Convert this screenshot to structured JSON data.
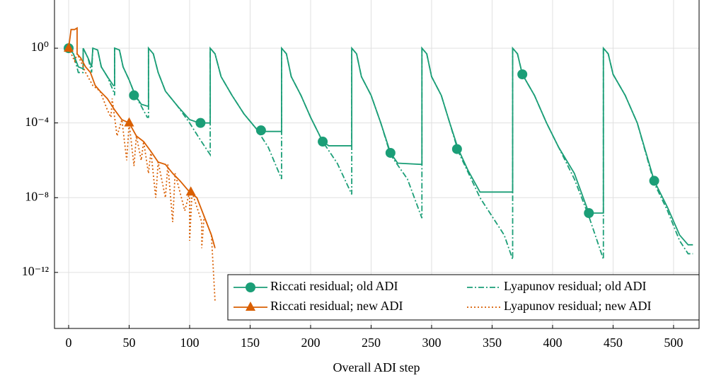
{
  "chart_data": {
    "type": "line",
    "xlabel": "Overall ADI step",
    "log_y": true,
    "grid": true,
    "legend": "lower right",
    "xlim": [
      -11.7,
      521.1
    ],
    "xticks": [
      0,
      50,
      100,
      150,
      200,
      250,
      300,
      350,
      400,
      450,
      500
    ],
    "ylim": [
      1e-15,
      380
    ],
    "yticks": [
      {
        "value": 1,
        "label": "10⁰"
      },
      {
        "value": 0.0001,
        "label": "10⁻⁴"
      },
      {
        "value": 1e-08,
        "label": "10⁻⁸"
      },
      {
        "value": 1e-12,
        "label": "10⁻¹²"
      }
    ],
    "series": [
      {
        "name": "Riccati residual; old ADI",
        "color": "#1b9e77",
        "dash": "solid",
        "marker": "circle",
        "x": [
          0,
          4,
          8,
          12,
          12,
          16,
          19,
          20,
          24,
          27,
          32,
          37,
          38,
          38,
          42,
          45,
          50,
          55,
          60,
          65,
          66,
          66,
          70,
          74,
          80,
          90,
          100,
          108,
          117,
          117,
          121,
          126,
          135,
          145,
          155,
          160,
          176,
          176,
          180,
          184,
          192,
          200,
          210,
          215,
          234,
          234,
          238,
          242,
          250,
          258,
          266,
          272,
          292,
          292,
          296,
          300,
          308,
          315,
          322,
          330,
          340,
          367,
          367,
          371,
          375,
          385,
          395,
          405,
          418,
          430,
          442,
          442,
          446,
          450,
          460,
          470,
          484,
          495,
          505,
          512,
          516
        ],
        "values": [
          1,
          0.5,
          0.1,
          0.08,
          1,
          0.3,
          0.1,
          1,
          0.8,
          0.1,
          0.03,
          0.01,
          0.01,
          1,
          0.8,
          0.1,
          0.02,
          0.003,
          0.001,
          0.0008,
          0.0008,
          1,
          0.5,
          0.05,
          0.005,
          0.0008,
          0.00015,
          0.0001,
          0.0001,
          1,
          0.5,
          0.03,
          0.003,
          0.0003,
          5e-05,
          3.5e-05,
          3.5e-05,
          1,
          0.5,
          0.03,
          0.003,
          0.0002,
          1e-05,
          6e-06,
          6e-06,
          1,
          0.5,
          0.03,
          0.003,
          0.0001,
          2.5e-06,
          7e-07,
          6e-07,
          1,
          0.5,
          0.03,
          0.003,
          0.0001,
          4e-06,
          3e-07,
          2e-08,
          2e-08,
          1,
          0.5,
          0.04,
          0.003,
          0.0001,
          5e-06,
          2e-07,
          1.5e-09,
          1.5e-09,
          1,
          0.5,
          0.04,
          0.003,
          0.0001,
          8e-08,
          3e-09,
          1e-10,
          3e-11,
          3e-11
        ],
        "marker_x": [
          0,
          54,
          109,
          159,
          210,
          266,
          321,
          375,
          430,
          484
        ],
        "marker_values": [
          1,
          0.003,
          0.0001,
          4e-05,
          1e-05,
          2.5e-06,
          4e-06,
          0.04,
          1.5e-09,
          8e-08
        ]
      },
      {
        "name": "Lyapunov residual; old ADI",
        "color": "#1b9e77",
        "dash": "dashdot",
        "x": [
          0,
          4,
          8,
          12,
          12,
          16,
          19,
          20,
          24,
          27,
          32,
          37,
          38,
          38,
          42,
          45,
          50,
          55,
          60,
          65,
          66,
          66,
          70,
          74,
          80,
          90,
          100,
          108,
          117,
          117,
          121,
          126,
          135,
          145,
          155,
          165,
          176,
          176,
          180,
          184,
          192,
          200,
          210,
          222,
          234,
          234,
          238,
          242,
          250,
          258,
          266,
          280,
          292,
          292,
          296,
          300,
          308,
          315,
          322,
          340,
          360,
          367,
          367,
          371,
          375,
          385,
          395,
          405,
          418,
          430,
          442,
          442,
          446,
          450,
          460,
          470,
          484,
          495,
          505,
          512,
          516
        ],
        "values": [
          1,
          0.5,
          0.05,
          0.05,
          1,
          0.3,
          0.05,
          1,
          0.8,
          0.1,
          0.03,
          0.005,
          0.003,
          1,
          0.8,
          0.1,
          0.02,
          0.003,
          0.0008,
          0.0002,
          0.0002,
          1,
          0.5,
          0.05,
          0.005,
          0.0008,
          0.0001,
          1.5e-05,
          2e-06,
          1,
          0.5,
          0.03,
          0.003,
          0.0003,
          5e-05,
          5e-06,
          1e-07,
          1,
          0.5,
          0.03,
          0.003,
          0.0002,
          1e-05,
          7e-07,
          1.5e-08,
          1,
          0.5,
          0.03,
          0.003,
          0.0001,
          2e-06,
          1e-07,
          8e-10,
          1,
          0.5,
          0.03,
          0.003,
          0.0001,
          3e-06,
          1e-08,
          1e-10,
          5e-12,
          1,
          0.5,
          0.04,
          0.003,
          0.0001,
          5e-06,
          1e-07,
          1e-09,
          5e-12,
          1,
          0.5,
          0.04,
          0.003,
          0.0001,
          6e-08,
          2e-09,
          5e-11,
          1e-11,
          1e-11
        ]
      },
      {
        "name": "Riccati residual; new ADI",
        "color": "#d95f02",
        "dash": "solid",
        "marker": "triangle",
        "x": [
          0,
          2,
          5,
          7,
          7,
          10,
          14,
          18,
          22,
          26,
          32,
          38,
          44,
          50,
          56,
          62,
          68,
          74,
          80,
          86,
          92,
          100,
          106,
          112,
          118,
          121
        ],
        "values": [
          1,
          10,
          10,
          12,
          0.5,
          0.3,
          0.1,
          0.05,
          0.01,
          0.005,
          0.002,
          0.0005,
          0.00015,
          0.0001,
          2e-05,
          1e-05,
          3e-06,
          8e-07,
          6e-07,
          2e-07,
          8e-08,
          2e-08,
          1e-08,
          1e-09,
          1e-10,
          2e-11
        ],
        "marker_x": [
          0,
          50,
          101
        ],
        "marker_values": [
          1,
          0.0001,
          2e-08
        ]
      },
      {
        "name": "Lyapunov residual; new ADI",
        "color": "#d95f02",
        "dash": "dotted",
        "x": [
          0,
          5,
          7,
          10,
          14,
          20,
          26,
          32,
          35,
          36,
          40,
          44,
          48,
          50,
          54,
          56,
          60,
          62,
          66,
          68,
          72,
          74,
          80,
          82,
          86,
          88,
          96,
          100,
          100,
          102,
          110,
          110,
          112,
          118,
          121
        ],
        "values": [
          1,
          0.2,
          0.5,
          0.2,
          0.05,
          0.01,
          0.005,
          0.0005,
          0.0002,
          0.002,
          2e-05,
          0.00015,
          1e-06,
          0.0001,
          5e-07,
          2e-05,
          1e-06,
          1e-05,
          2e-07,
          3e-06,
          1e-08,
          8e-07,
          1e-08,
          6e-07,
          5e-10,
          2e-07,
          2e-09,
          2e-08,
          5e-11,
          2e-08,
          5e-10,
          2e-11,
          1e-09,
          1e-10,
          3e-14
        ]
      }
    ]
  }
}
